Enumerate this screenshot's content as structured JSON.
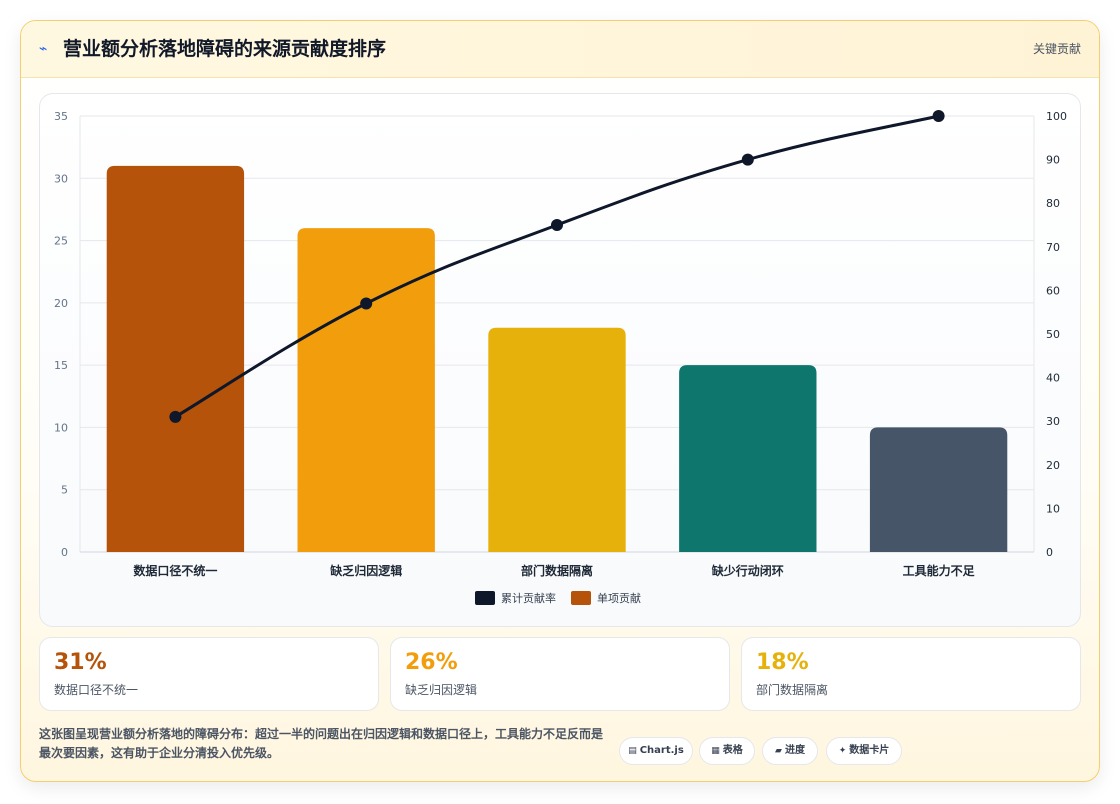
{
  "header": {
    "icon": "lightning-icon",
    "title": "营业额分析落地障碍的来源贡献度排序",
    "tag": "关键贡献"
  },
  "chart_data": {
    "type": "bar",
    "categories": [
      "数据口径不统一",
      "缺乏归因逻辑",
      "部门数据隔离",
      "缺少行动闭环",
      "工具能力不足"
    ],
    "series": [
      {
        "name": "单项贡献",
        "type": "bar",
        "axis": "left",
        "values": [
          31,
          26,
          18,
          15,
          10
        ],
        "colors": [
          "#b45309",
          "#f29e0c",
          "#e6b10a",
          "#0f766e",
          "#475569"
        ]
      },
      {
        "name": "累计贡献率",
        "type": "line",
        "axis": "right",
        "values": [
          31,
          57,
          75,
          90,
          100
        ],
        "color": "#0f172a"
      }
    ],
    "y_left": {
      "min": 0,
      "max": 35,
      "step": 5
    },
    "y_right": {
      "min": 0,
      "max": 100,
      "step": 10
    },
    "legend": {
      "position": "bottom",
      "items": [
        {
          "label": "累计贡献率",
          "color": "#0f172a"
        },
        {
          "label": "单项贡献",
          "color": "#b45309"
        }
      ]
    },
    "grid": true
  },
  "stats": [
    {
      "value": "31%",
      "label": "数据口径不统一",
      "color": "#b45309"
    },
    {
      "value": "26%",
      "label": "缺乏归因逻辑",
      "color": "#f29e0c"
    },
    {
      "value": "18%",
      "label": "部门数据隔离",
      "color": "#e6b10a"
    }
  ],
  "description": "这张图呈现营业额分析落地的障碍分布：超过一半的问题出在归因逻辑和数据口径上，工具能力不足反而是最次要因素，这有助于企业分清投入优先级。",
  "chips": [
    {
      "icon": "chart-icon",
      "glyph": "▤",
      "label": "Chart.js"
    },
    {
      "icon": "table-icon",
      "glyph": "▦",
      "label": "表格"
    },
    {
      "icon": "progress-icon",
      "glyph": "▰",
      "label": "进度"
    },
    {
      "icon": "card-icon",
      "glyph": "✦",
      "label": "数据卡片"
    }
  ]
}
